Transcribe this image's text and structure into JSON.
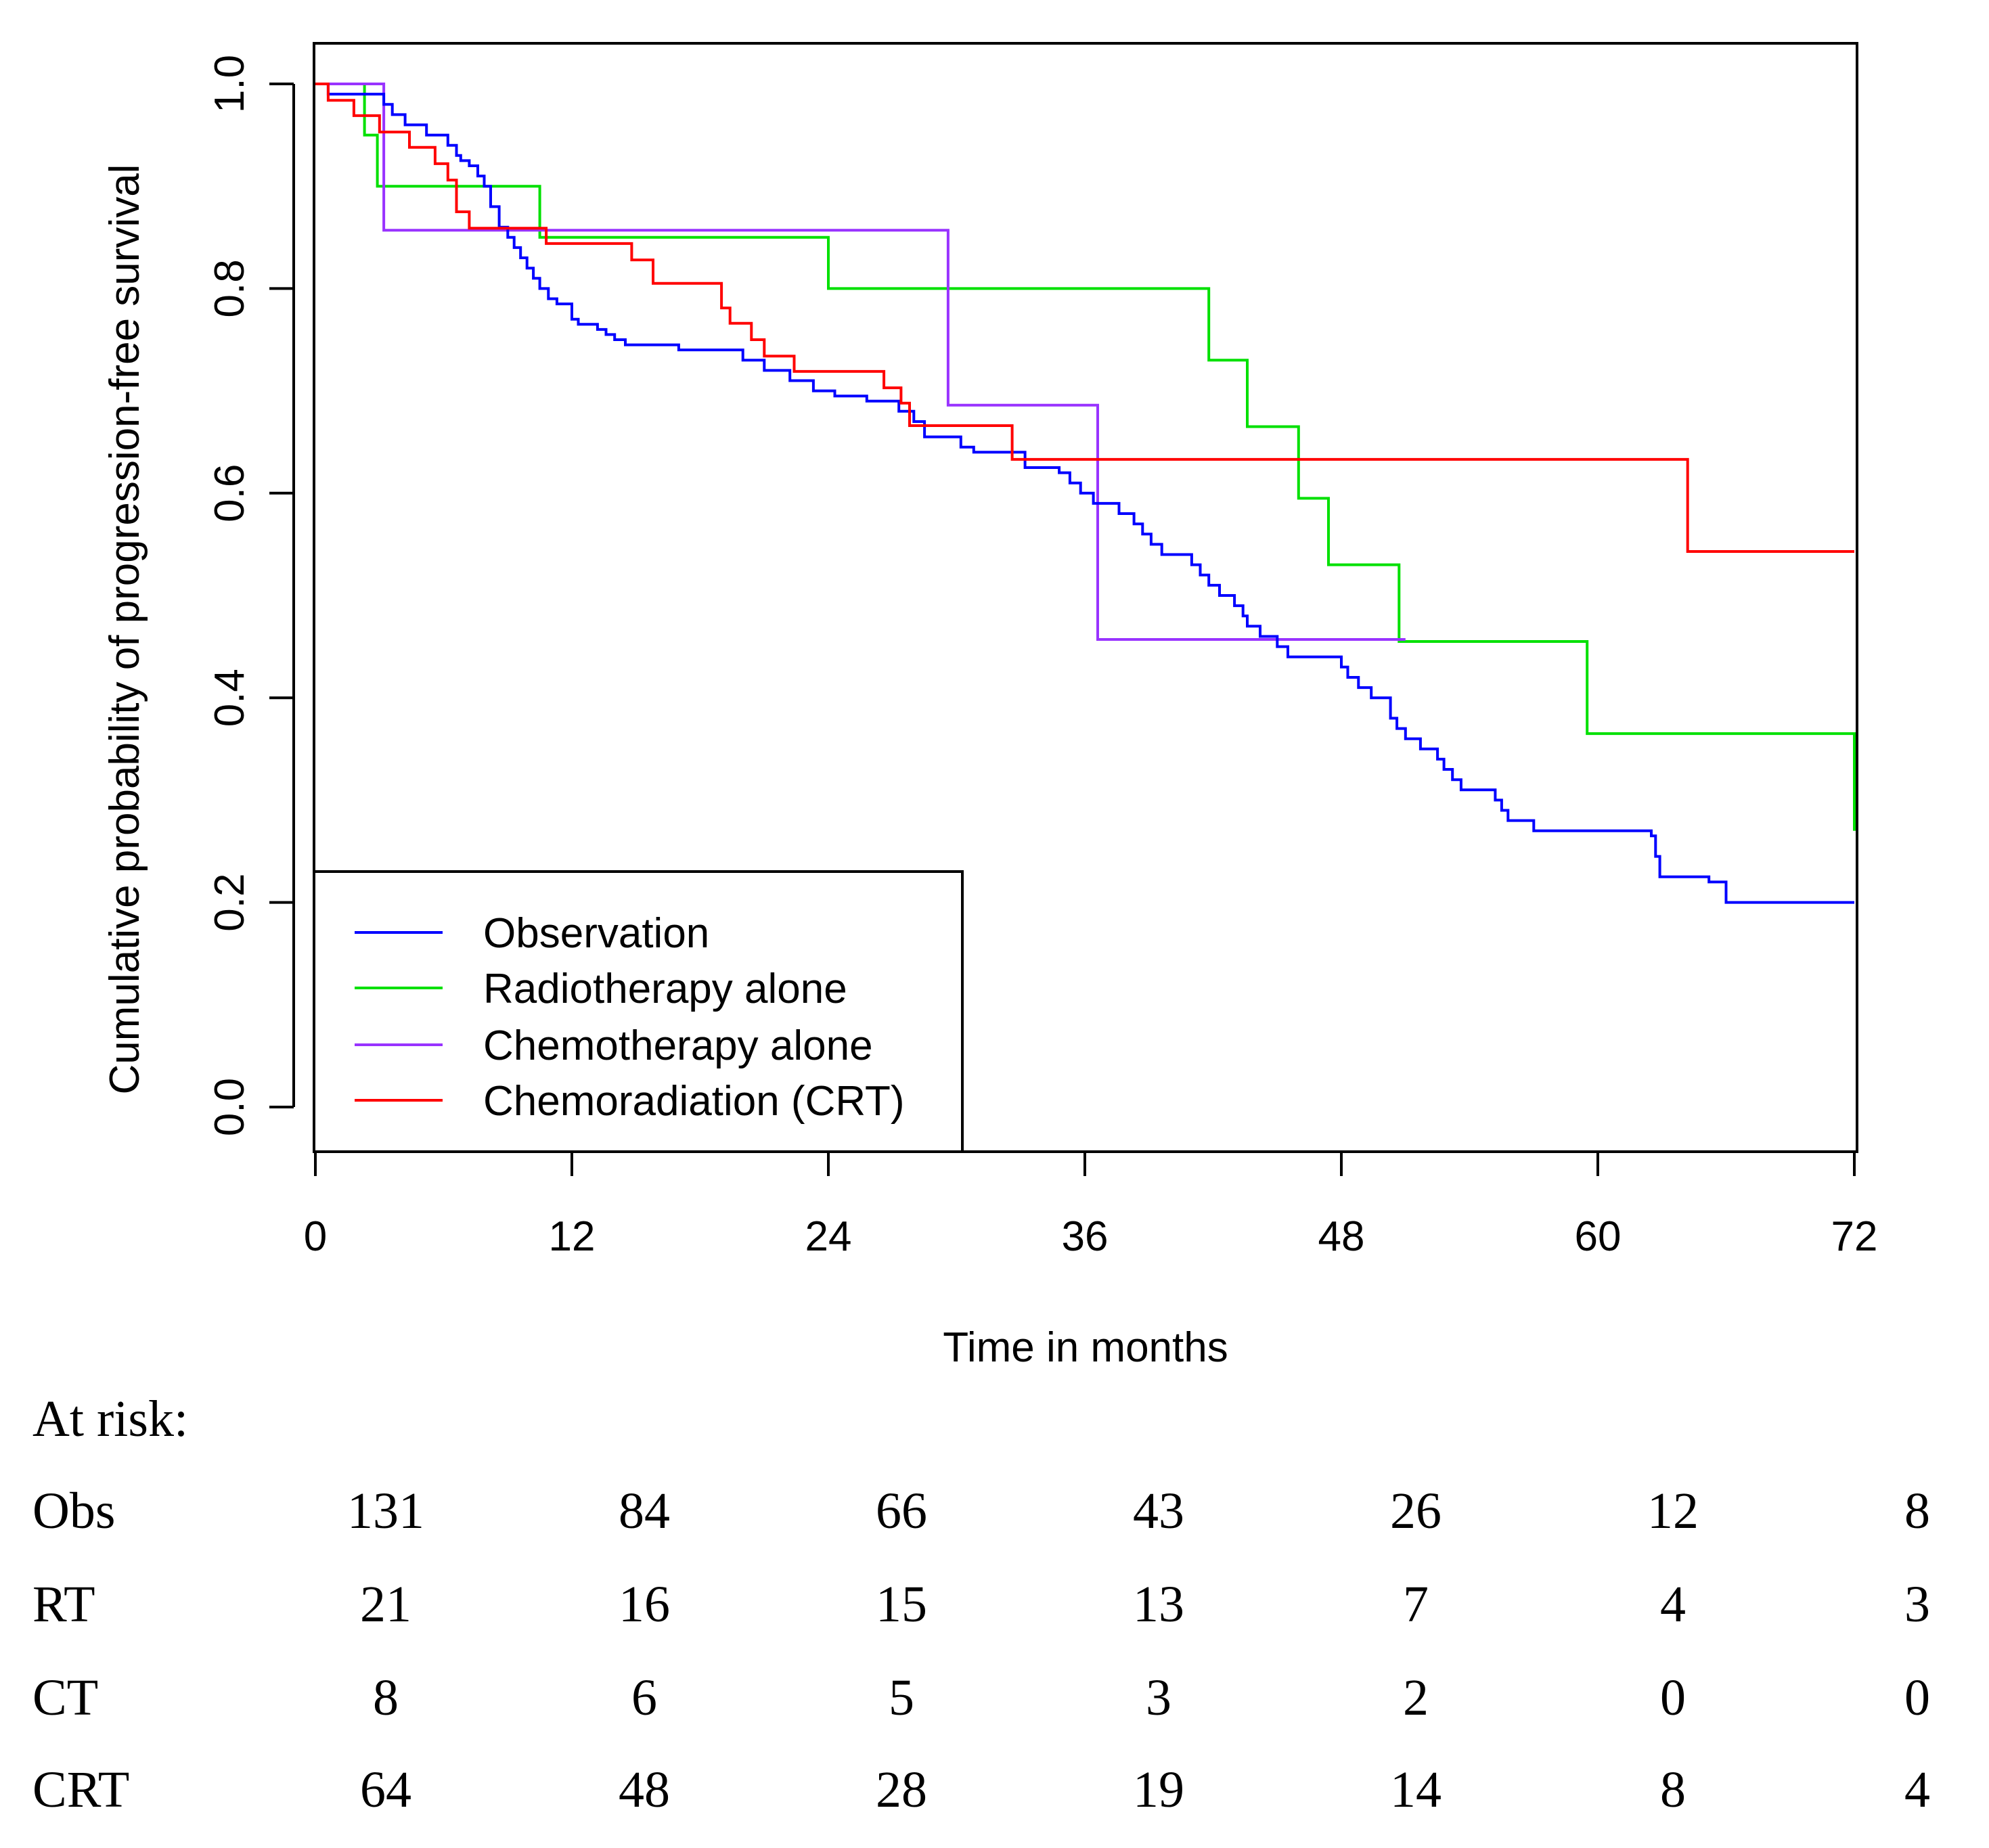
{
  "chart_data": {
    "type": "line",
    "subtype": "kaplan-meier-step",
    "title": "",
    "xlabel": "Time in months",
    "ylabel": "Cumulative probability of progression-free survival",
    "xlim": [
      0,
      72
    ],
    "ylim": [
      0,
      1.0
    ],
    "x_ticks": [
      0,
      12,
      24,
      36,
      48,
      60,
      72
    ],
    "x_tick_labels": [
      "0",
      "12",
      "24",
      "36",
      "48",
      "60",
      "72"
    ],
    "y_ticks": [
      0.0,
      0.2,
      0.4,
      0.6,
      0.8,
      1.0
    ],
    "y_tick_labels": [
      "0.0",
      "0.2",
      "0.4",
      "0.6",
      "0.8",
      "1.0"
    ],
    "grid": false,
    "legend_position": "bottom-left",
    "series": [
      {
        "name": "Observation",
        "color": "#0000ff",
        "x": [
          0,
          0.6,
          2.4,
          3.2,
          3.6,
          4.2,
          4.6,
          5.2,
          6.2,
          6.6,
          6.8,
          7.2,
          7.6,
          7.9,
          8.2,
          8.6,
          9.0,
          9.3,
          9.6,
          9.9,
          10.2,
          10.5,
          10.9,
          11.3,
          11.6,
          12.0,
          12.3,
          12.6,
          13.2,
          13.6,
          14.0,
          14.5,
          15.0,
          17.0,
          18.0,
          20.0,
          21.0,
          22.2,
          23.3,
          24.3,
          25.8,
          27.3,
          28.0,
          28.5,
          30.2,
          30.8,
          33.2,
          33.8,
          34.8,
          35.3,
          35.8,
          36.4,
          36.9,
          37.6,
          38.3,
          38.7,
          39.1,
          39.6,
          41.0,
          41.4,
          41.8,
          42.3,
          43.0,
          43.4,
          43.6,
          44.2,
          45.0,
          45.5,
          47.6,
          48.0,
          48.3,
          48.8,
          49.4,
          50.3,
          50.6,
          51.0,
          51.7,
          52.5,
          52.8,
          53.2,
          53.6,
          55.2,
          55.5,
          55.8,
          57.0,
          62.5,
          62.7,
          62.9,
          65.2,
          66.0,
          72.0
        ],
        "y": [
          1.0,
          0.99,
          0.99,
          0.98,
          0.97,
          0.96,
          0.96,
          0.95,
          0.94,
          0.93,
          0.925,
          0.92,
          0.91,
          0.9,
          0.88,
          0.86,
          0.85,
          0.84,
          0.83,
          0.82,
          0.81,
          0.8,
          0.79,
          0.785,
          0.785,
          0.77,
          0.765,
          0.765,
          0.76,
          0.755,
          0.75,
          0.745,
          0.745,
          0.74,
          0.74,
          0.73,
          0.72,
          0.71,
          0.7,
          0.695,
          0.69,
          0.68,
          0.67,
          0.655,
          0.645,
          0.64,
          0.625,
          0.625,
          0.62,
          0.61,
          0.6,
          0.59,
          0.59,
          0.58,
          0.57,
          0.56,
          0.55,
          0.54,
          0.53,
          0.52,
          0.51,
          0.5,
          0.49,
          0.48,
          0.47,
          0.46,
          0.45,
          0.44,
          0.44,
          0.43,
          0.42,
          0.41,
          0.4,
          0.38,
          0.37,
          0.36,
          0.35,
          0.34,
          0.33,
          0.32,
          0.31,
          0.3,
          0.29,
          0.28,
          0.27,
          0.265,
          0.245,
          0.225,
          0.22,
          0.2,
          0.2
        ]
      },
      {
        "name": "Radiotherapy alone",
        "color": "#00e000",
        "x": [
          0,
          2.3,
          2.9,
          10.5,
          24.0,
          41.8,
          43.6,
          46.0,
          47.4,
          50.7,
          59.5,
          72.0,
          72.0
        ],
        "y": [
          1.0,
          0.95,
          0.9,
          0.85,
          0.8,
          0.73,
          0.665,
          0.595,
          0.53,
          0.455,
          0.365,
          0.365,
          0.27
        ]
      },
      {
        "name": "Chemotherapy alone",
        "color": "#9933ff",
        "x": [
          0,
          3.2,
          29.6,
          36.6,
          51.0
        ],
        "y": [
          1.0,
          0.857,
          0.686,
          0.457,
          0.457
        ]
      },
      {
        "name": "Chemoradiation (CRT)",
        "color": "#ff0000",
        "x": [
          0,
          0.6,
          1.8,
          3.0,
          3.4,
          4.4,
          5.6,
          6.2,
          6.6,
          7.2,
          10.8,
          14.8,
          15.8,
          19.0,
          19.4,
          20.4,
          21.0,
          22.4,
          26.6,
          27.4,
          27.8,
          32.6,
          64.2,
          72.0
        ],
        "y": [
          1.0,
          0.984,
          0.969,
          0.953,
          0.953,
          0.938,
          0.922,
          0.906,
          0.875,
          0.859,
          0.844,
          0.828,
          0.805,
          0.781,
          0.766,
          0.75,
          0.734,
          0.719,
          0.703,
          0.688,
          0.666,
          0.633,
          0.543,
          0.543
        ]
      }
    ],
    "at_risk": {
      "title": "At risk:",
      "time_points": [
        0,
        12,
        24,
        36,
        48,
        60,
        72
      ],
      "rows": [
        {
          "label": "Obs",
          "values": [
            "131",
            "84",
            "66",
            "43",
            "26",
            "12",
            "8"
          ]
        },
        {
          "label": "RT",
          "values": [
            "21",
            "16",
            "15",
            "13",
            "7",
            "4",
            "3"
          ]
        },
        {
          "label": "CT",
          "values": [
            "8",
            "6",
            "5",
            "3",
            "2",
            "0",
            "0"
          ]
        },
        {
          "label": "CRT",
          "values": [
            "64",
            "48",
            "28",
            "19",
            "14",
            "8",
            "4"
          ]
        }
      ]
    }
  }
}
